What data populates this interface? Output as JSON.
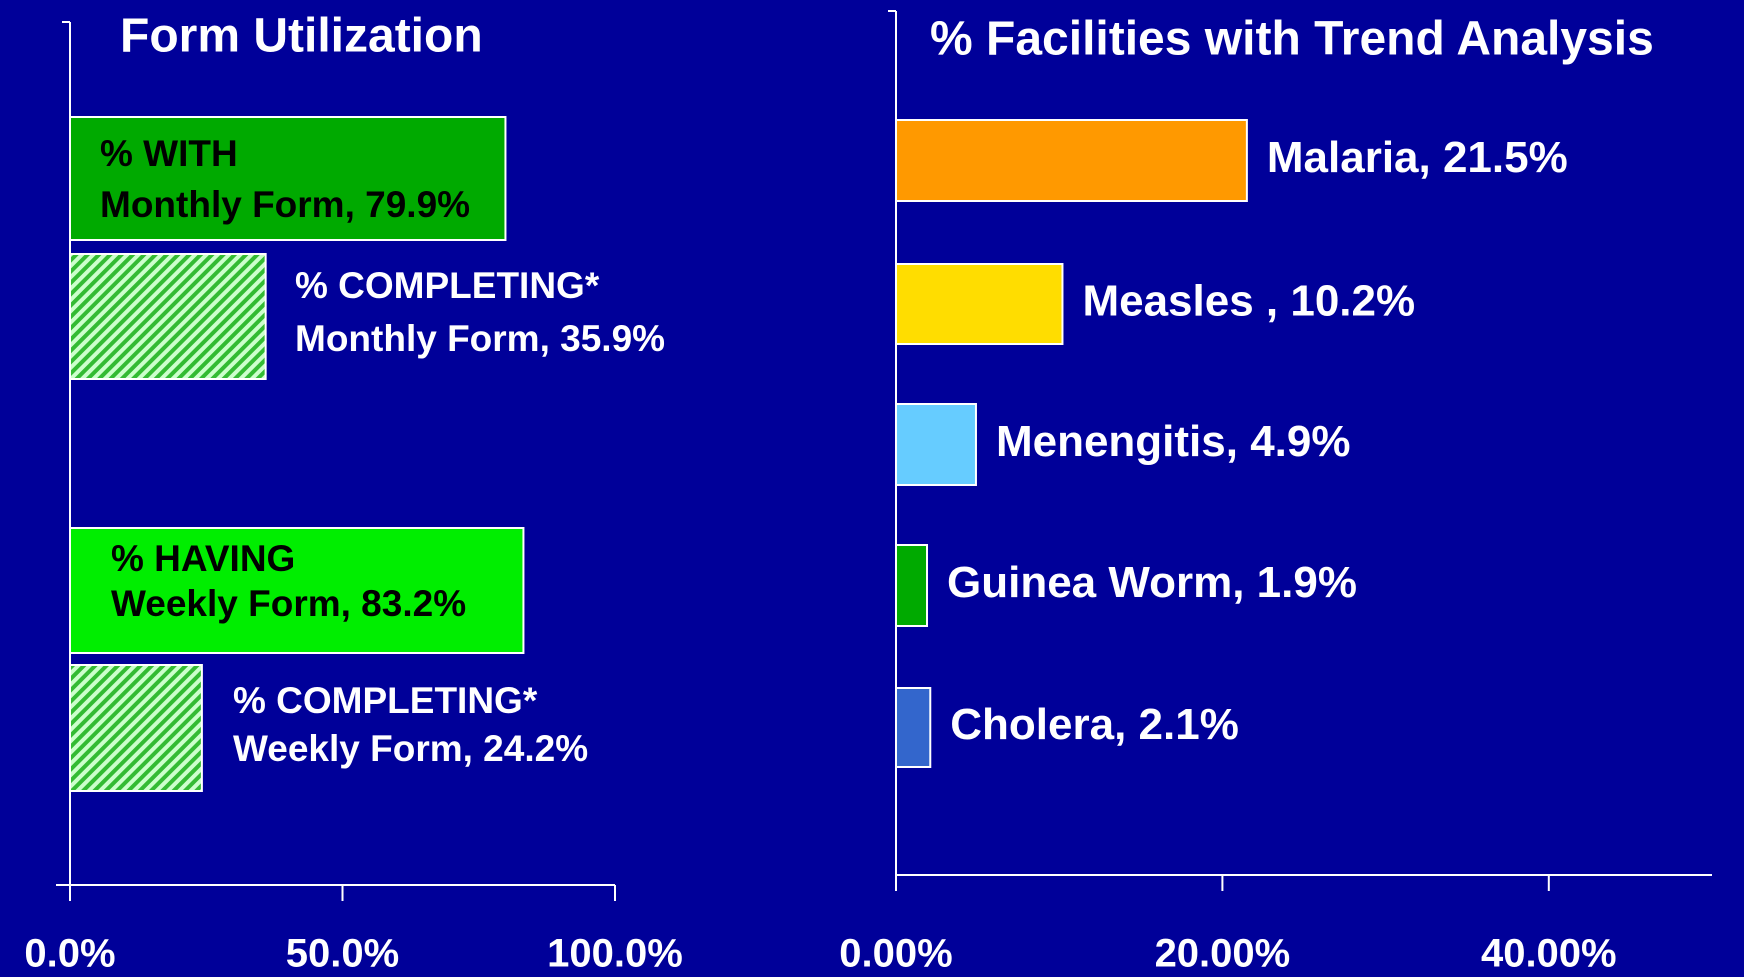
{
  "chart_data": [
    {
      "type": "bar",
      "title": "Form Utilization",
      "categories": [
        "Monthly WITH",
        "Monthly COMPLETING",
        "Weekly HAVING",
        "Weekly COMPLETING"
      ],
      "values": [
        79.9,
        35.9,
        83.2,
        24.2
      ],
      "value_labels": [
        [
          "% WITH",
          "Monthly Form, 79.9%"
        ],
        [
          "% COMPLETING*",
          "Monthly Form, 35.9%"
        ],
        [
          "% HAVING",
          "Weekly Form, 83.2%"
        ],
        [
          "% COMPLETING*",
          "Weekly Form, 24.2%"
        ]
      ],
      "colors": [
        "#00aa00",
        "#33cc33",
        "#00ee00",
        "#66ee66"
      ],
      "hatched": [
        false,
        true,
        false,
        true
      ],
      "xlim": [
        0,
        100
      ],
      "xticks": [
        {
          "value": 0,
          "label": "0.0%"
        },
        {
          "value": 50,
          "label": "50.0%"
        },
        {
          "value": 100,
          "label": "100.0%"
        }
      ]
    },
    {
      "type": "bar",
      "title": "% Facilities with Trend Analysis",
      "categories": [
        "Malaria",
        "Measles",
        "Menengitis",
        "Guinea Worm",
        "Cholera"
      ],
      "values": [
        21.5,
        10.2,
        4.9,
        1.9,
        2.1
      ],
      "value_labels": [
        "Malaria, 21.5%",
        "Measles , 10.2%",
        "Menengitis, 4.9%",
        "Guinea Worm, 1.9%",
        "Cholera, 2.1%"
      ],
      "colors": [
        "#ff9900",
        "#ffdd00",
        "#66ccff",
        "#00aa00",
        "#3366cc"
      ],
      "xlim": [
        0,
        50
      ],
      "xticks": [
        {
          "value": 0,
          "label": "0.00%"
        },
        {
          "value": 20,
          "label": "20.00%"
        },
        {
          "value": 40,
          "label": "40.00%"
        }
      ]
    }
  ]
}
